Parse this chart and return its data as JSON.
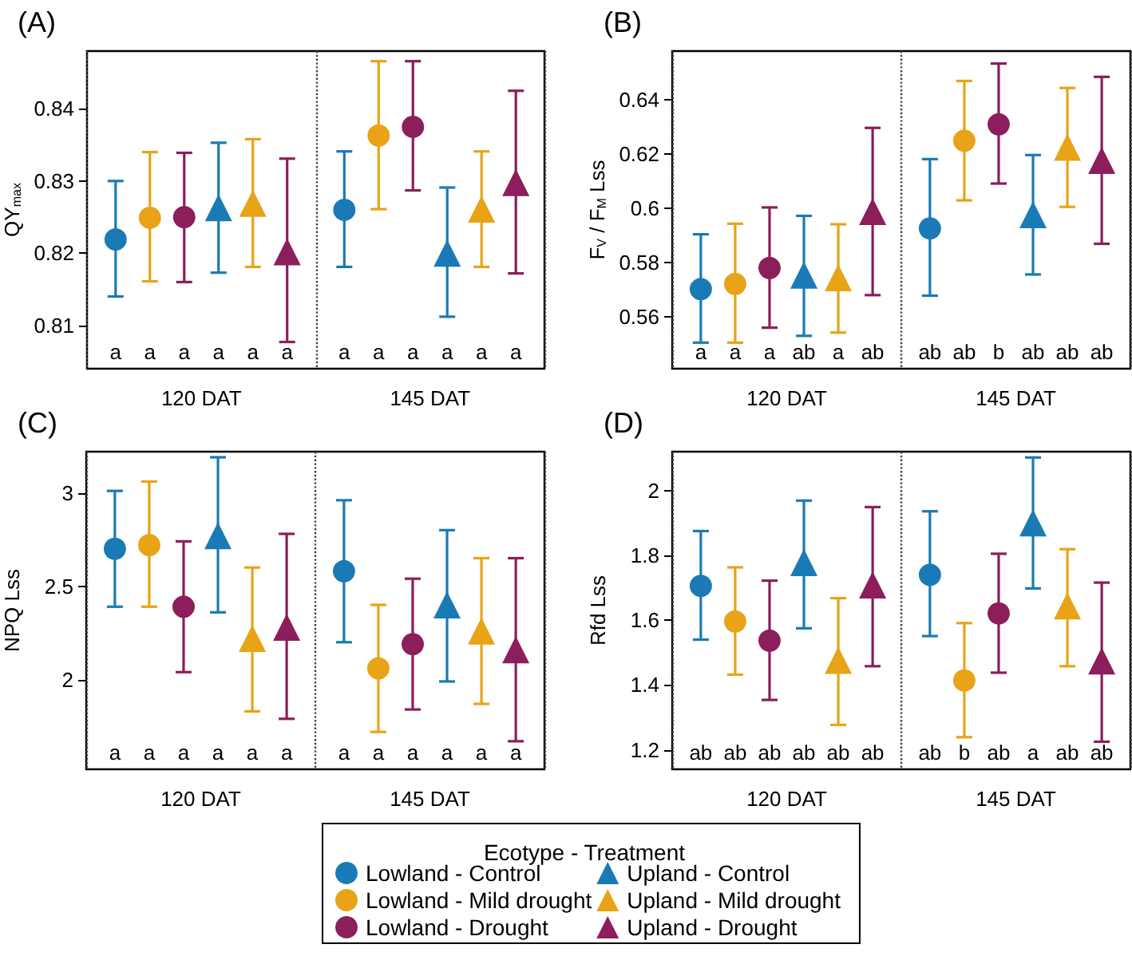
{
  "chart_data": [
    {
      "type": "scatter",
      "title": "(A)",
      "ylabel": "QY$_{max}$",
      "categories": [
        "120 DAT",
        "145 DAT"
      ],
      "ylim": [
        0.804,
        0.848
      ],
      "yticks": [
        0.81,
        0.82,
        0.83,
        0.84
      ],
      "grid": "x",
      "legend": "bottom",
      "legend_title": "Ecotype - Treatment",
      "annotations": [
        "a",
        "a",
        "a",
        "a",
        "a",
        "a",
        "a",
        "a",
        "a",
        "a",
        "a",
        "a"
      ],
      "series": [
        {
          "name": "Lowland - Control",
          "color": "#1a7ab5",
          "marker": "circle",
          "values": [
            0.8219,
            0.826
          ],
          "errors": [
            [
              0.814,
              0.83
            ],
            [
              0.8181,
              0.8341
            ]
          ]
        },
        {
          "name": "Lowland - Mild drought",
          "color": "#e8a317",
          "marker": "circle",
          "values": [
            0.8249,
            0.8363
          ],
          "errors": [
            [
              0.8161,
              0.834
            ],
            [
              0.8261,
              0.8466
            ]
          ]
        },
        {
          "name": "Lowland - Drought",
          "color": "#8b1e5b",
          "marker": "circle",
          "values": [
            0.825,
            0.8375
          ],
          "errors": [
            [
              0.816,
              0.8339
            ],
            [
              0.8287,
              0.8466
            ]
          ]
        },
        {
          "name": "Upland - Control",
          "color": "#1a7ab5",
          "marker": "triangle",
          "values": [
            0.8263,
            0.82
          ],
          "errors": [
            [
              0.8173,
              0.8353
            ],
            [
              0.8112,
              0.8291
            ]
          ]
        },
        {
          "name": "Upland - Mild drought",
          "color": "#e8a317",
          "marker": "triangle",
          "values": [
            0.8269,
            0.8261
          ],
          "errors": [
            [
              0.8181,
              0.8358
            ],
            [
              0.8181,
              0.8341
            ]
          ]
        },
        {
          "name": "Upland - Drought",
          "color": "#8b1e5b",
          "marker": "triangle",
          "values": [
            0.8202,
            0.8298
          ],
          "errors": [
            [
              0.8077,
              0.8331
            ],
            [
              0.8172,
              0.8425
            ]
          ]
        }
      ]
    },
    {
      "type": "scatter",
      "title": "(B)",
      "ylabel": "F$_{V}$ / F$_{M}$ Lss",
      "categories": [
        "120 DAT",
        "145 DAT"
      ],
      "ylim": [
        0.541,
        0.658
      ],
      "yticks": [
        0.56,
        0.58,
        0.6,
        0.62,
        0.64
      ],
      "grid": "x",
      "annotations": [
        "a",
        "a",
        "a",
        "ab",
        "a",
        "ab",
        "ab",
        "ab",
        "b",
        "ab",
        "ab",
        "ab"
      ],
      "series": [
        {
          "color": "#1a7ab5",
          "marker": "circle",
          "values": [
            0.5703,
            0.5927
          ],
          "errors": [
            [
              0.5506,
              0.5905
            ],
            [
              0.5679,
              0.6182
            ]
          ]
        },
        {
          "color": "#e8a317",
          "marker": "circle",
          "values": [
            0.5722,
            0.625
          ],
          "errors": [
            [
              0.5506,
              0.5944
            ],
            [
              0.603,
              0.647
            ]
          ]
        },
        {
          "color": "#8b1e5b",
          "marker": "circle",
          "values": [
            0.5781,
            0.631
          ],
          "errors": [
            [
              0.5561,
              0.6004
            ],
            [
              0.6092,
              0.6534
            ]
          ]
        },
        {
          "color": "#1a7ab5",
          "marker": "triangle",
          "values": [
            0.5755,
            0.5977
          ],
          "errors": [
            [
              0.5531,
              0.5973
            ],
            [
              0.5757,
              0.6197
            ]
          ]
        },
        {
          "color": "#e8a317",
          "marker": "triangle",
          "values": [
            0.5745,
            0.6226
          ],
          "errors": [
            [
              0.5543,
              0.5942
            ],
            [
              0.6006,
              0.6444
            ]
          ]
        },
        {
          "color": "#8b1e5b",
          "marker": "triangle",
          "values": [
            0.5989,
            0.6177
          ],
          "errors": [
            [
              0.5681,
              0.6297
            ],
            [
              0.587,
              0.6485
            ]
          ]
        }
      ]
    },
    {
      "type": "scatter",
      "title": "(C)",
      "ylabel": "NPQ Lss",
      "categories": [
        "120 DAT",
        "145 DAT"
      ],
      "ylim": [
        1.52,
        3.22
      ],
      "yticks": [
        2,
        2.5,
        3
      ],
      "grid": "x",
      "annotations": [
        "a",
        "a",
        "a",
        "a",
        "a",
        "a",
        "a",
        "a",
        "a",
        "a",
        "a",
        "a"
      ],
      "series": [
        {
          "color": "#1a7ab5",
          "marker": "circle",
          "values": [
            2.7,
            2.58
          ],
          "errors": [
            [
              2.39,
              3.01
            ],
            [
              2.2,
              2.96
            ]
          ]
        },
        {
          "color": "#e8a317",
          "marker": "circle",
          "values": [
            2.72,
            2.06
          ],
          "errors": [
            [
              2.39,
              3.06
            ],
            [
              1.72,
              2.4
            ]
          ]
        },
        {
          "color": "#8b1e5b",
          "marker": "circle",
          "values": [
            2.39,
            2.19
          ],
          "errors": [
            [
              2.04,
              2.74
            ],
            [
              1.84,
              2.54
            ]
          ]
        },
        {
          "color": "#1a7ab5",
          "marker": "triangle",
          "values": [
            2.77,
            2.4
          ],
          "errors": [
            [
              2.36,
              3.19
            ],
            [
              1.99,
              2.8
            ]
          ]
        },
        {
          "color": "#e8a317",
          "marker": "triangle",
          "values": [
            2.22,
            2.26
          ],
          "errors": [
            [
              1.83,
              2.6
            ],
            [
              1.87,
              2.65
            ]
          ]
        },
        {
          "color": "#8b1e5b",
          "marker": "triangle",
          "values": [
            2.28,
            2.16
          ],
          "errors": [
            [
              1.79,
              2.78
            ],
            [
              1.67,
              2.65
            ]
          ]
        }
      ]
    },
    {
      "type": "scatter",
      "title": "(D)",
      "ylabel": "Rfd Lss",
      "categories": [
        "120 DAT",
        "145 DAT"
      ],
      "ylim": [
        1.14,
        2.12
      ],
      "yticks": [
        1.2,
        1.4,
        1.6,
        1.8,
        2
      ],
      "grid": "x",
      "annotations": [
        "ab",
        "ab",
        "ab",
        "ab",
        "ab",
        "ab",
        "ab",
        "b",
        "ab",
        "a",
        "ab",
        "ab"
      ],
      "series": [
        {
          "color": "#1a7ab5",
          "marker": "circle",
          "values": [
            1.706,
            1.74
          ],
          "errors": [
            [
              1.54,
              1.875
            ],
            [
              1.551,
              1.936
            ]
          ]
        },
        {
          "color": "#e8a317",
          "marker": "circle",
          "values": [
            1.596,
            1.414
          ],
          "errors": [
            [
              1.432,
              1.763
            ],
            [
              1.239,
              1.591
            ]
          ]
        },
        {
          "color": "#8b1e5b",
          "marker": "circle",
          "values": [
            1.537,
            1.621
          ],
          "errors": [
            [
              1.354,
              1.722
            ],
            [
              1.438,
              1.805
            ]
          ]
        },
        {
          "color": "#1a7ab5",
          "marker": "triangle",
          "values": [
            1.778,
            1.9
          ],
          "errors": [
            [
              1.575,
              1.969
            ],
            [
              1.698,
              2.102
            ]
          ]
        },
        {
          "color": "#e8a317",
          "marker": "triangle",
          "values": [
            1.476,
            1.644
          ],
          "errors": [
            [
              1.277,
              1.668
            ],
            [
              1.458,
              1.819
            ]
          ]
        },
        {
          "color": "#8b1e5b",
          "marker": "triangle",
          "values": [
            1.709,
            1.474
          ],
          "errors": [
            [
              1.458,
              1.949
            ],
            [
              1.225,
              1.716
            ]
          ]
        }
      ]
    }
  ]
}
